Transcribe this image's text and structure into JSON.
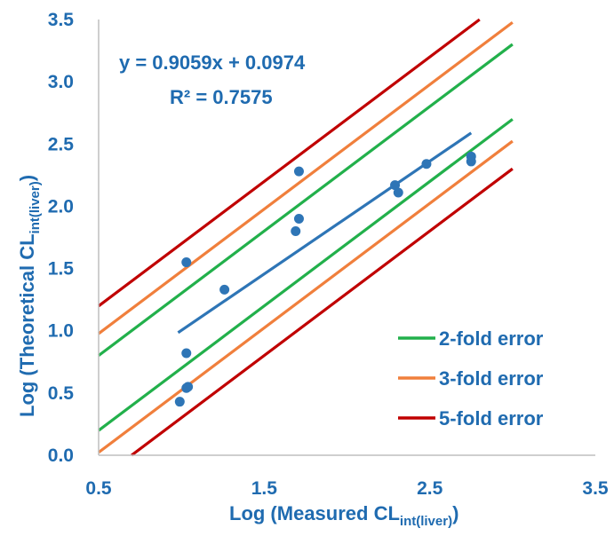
{
  "chart_data": {
    "type": "scatter",
    "xlabel": {
      "main": "Log (Measured CL",
      "sub": "int(liver)",
      "end": ")"
    },
    "ylabel": {
      "main": "Log (Theoretical CL",
      "sub": "int(liver)",
      "end": ")"
    },
    "xlim": [
      0.5,
      3.5
    ],
    "ylim": [
      0.0,
      3.5
    ],
    "xticks": [
      0.5,
      1.5,
      2.5,
      3.5
    ],
    "xtick_labels": [
      "0.5",
      "1.5",
      "2.5",
      "3.5"
    ],
    "yticks": [
      0.0,
      0.5,
      1.0,
      1.5,
      2.0,
      2.5,
      3.0,
      3.5
    ],
    "ytick_labels": [
      "0.0",
      "0.5",
      "1.0",
      "1.5",
      "2.0",
      "2.5",
      "3.0",
      "3.5"
    ],
    "grid": false,
    "legend_position": "bottom-right",
    "points": [
      {
        "x": 0.99,
        "y": 0.43
      },
      {
        "x": 1.03,
        "y": 0.54
      },
      {
        "x": 1.04,
        "y": 0.55
      },
      {
        "x": 1.03,
        "y": 0.82
      },
      {
        "x": 1.03,
        "y": 1.55
      },
      {
        "x": 1.26,
        "y": 1.33
      },
      {
        "x": 1.69,
        "y": 1.8
      },
      {
        "x": 1.71,
        "y": 1.9
      },
      {
        "x": 1.71,
        "y": 2.28
      },
      {
        "x": 2.29,
        "y": 2.17
      },
      {
        "x": 2.31,
        "y": 2.11
      },
      {
        "x": 2.48,
        "y": 2.34
      },
      {
        "x": 2.75,
        "y": 2.4
      },
      {
        "x": 2.75,
        "y": 2.36
      }
    ],
    "point_color": "#2e75b6",
    "regression": {
      "slope": 0.9059,
      "intercept": 0.0974,
      "x_range": [
        0.98,
        2.75
      ],
      "color": "#2e75b6",
      "equation_text": "y = 0.9059x + 0.0974",
      "r2_text": "R² = 0.7575"
    },
    "error_lines": [
      {
        "name": "2-fold error",
        "offset": 0.301,
        "color": "#22b04b"
      },
      {
        "name": "3-fold error",
        "offset": 0.477,
        "color": "#f07f3c"
      },
      {
        "name": "5-fold error",
        "offset": 0.699,
        "color": "#c00000"
      }
    ],
    "error_line_x_range": [
      0.5,
      3.0
    ]
  }
}
